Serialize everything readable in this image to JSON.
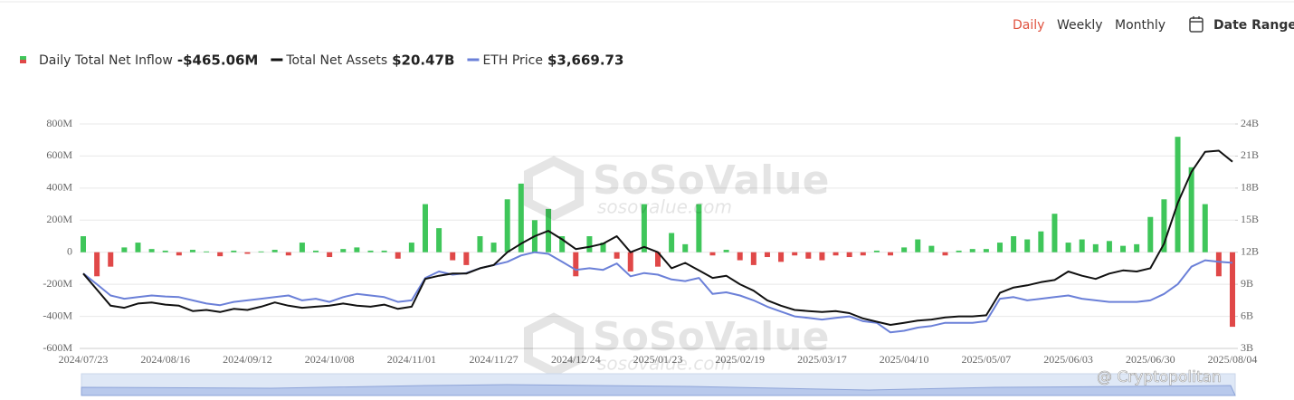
{
  "header": {
    "tabs": [
      "Daily",
      "Weekly",
      "Monthly"
    ],
    "date_range": "Date Range"
  },
  "watermark": [
    "SoSoValue",
    "sosovalue.com"
  ],
  "source": "@ Cryptopolitan",
  "chart_data": {
    "type": "bar-line",
    "categories": [
      "2024/07/23",
      null,
      null,
      null,
      null,
      null,
      "2024/08/16",
      null,
      null,
      null,
      null,
      null,
      "2024/09/12",
      null,
      null,
      null,
      null,
      null,
      "2024/10/08",
      null,
      null,
      null,
      null,
      null,
      "2024/11/01",
      null,
      null,
      null,
      null,
      null,
      "2024/11/27",
      null,
      null,
      null,
      null,
      null,
      "2024/12/24",
      null,
      null,
      null,
      null,
      null,
      "2025/01/23",
      null,
      null,
      null,
      null,
      null,
      "2025/02/19",
      null,
      null,
      null,
      null,
      null,
      "2025/03/17",
      null,
      null,
      null,
      null,
      null,
      "2025/04/10",
      null,
      null,
      null,
      null,
      null,
      "2025/05/07",
      null,
      null,
      null,
      null,
      null,
      "2025/06/03",
      null,
      null,
      null,
      null,
      null,
      "2025/06/30",
      null,
      null,
      null,
      null,
      null,
      "2025/08/04"
    ],
    "series": [
      {
        "name": "Daily Total Net Inflow",
        "latest": "-$465.06M",
        "color": "#3fc65a",
        "negative_color": "#e04848",
        "kind": "bar",
        "axis": "y",
        "values": [
          100,
          -150,
          -90,
          30,
          60,
          20,
          10,
          -20,
          15,
          5,
          -25,
          10,
          -10,
          5,
          15,
          -20,
          60,
          10,
          -30,
          20,
          30,
          10,
          10,
          -40,
          60,
          300,
          150,
          -50,
          -80,
          100,
          60,
          330,
          428,
          200,
          270,
          100,
          -150,
          100,
          60,
          -40,
          -120,
          300,
          -90,
          120,
          50,
          300,
          -20,
          15,
          -50,
          -80,
          -30,
          -60,
          -20,
          -40,
          -50,
          -20,
          -30,
          -20,
          10,
          -20,
          30,
          80,
          40,
          -20,
          10,
          20,
          20,
          60,
          100,
          80,
          130,
          240,
          60,
          80,
          50,
          70,
          40,
          50,
          220,
          330,
          720,
          530,
          300,
          -150,
          -465.06
        ]
      },
      {
        "name": "Total Net Assets",
        "latest": "$20.47B",
        "color": "#111111",
        "kind": "line",
        "axis": "y2",
        "values": [
          10.0,
          8.5,
          7.0,
          6.8,
          7.2,
          7.3,
          7.1,
          7.0,
          6.5,
          6.6,
          6.4,
          6.7,
          6.6,
          6.9,
          7.3,
          7.0,
          6.8,
          6.9,
          7.0,
          7.2,
          7.0,
          6.9,
          7.1,
          6.7,
          6.9,
          9.5,
          9.8,
          10.0,
          10.0,
          10.5,
          10.8,
          12.0,
          12.8,
          13.5,
          14.0,
          13.2,
          12.3,
          12.5,
          12.8,
          13.5,
          12.0,
          12.5,
          12.0,
          10.5,
          11.0,
          10.3,
          9.6,
          9.8,
          9.0,
          8.4,
          7.5,
          7.0,
          6.6,
          6.5,
          6.4,
          6.5,
          6.3,
          5.8,
          5.5,
          5.2,
          5.4,
          5.6,
          5.7,
          5.9,
          6.0,
          6.0,
          6.1,
          8.2,
          8.7,
          8.9,
          9.2,
          9.4,
          10.2,
          9.8,
          9.5,
          10.0,
          10.3,
          10.2,
          10.5,
          12.8,
          16.6,
          19.5,
          21.4,
          21.5,
          20.47
        ]
      },
      {
        "name": "ETH Price",
        "latest": "$3,669.73",
        "color": "#6b80d8",
        "kind": "line",
        "axis": "y3",
        "values": [
          3340,
          3000,
          2650,
          2550,
          2600,
          2650,
          2620,
          2600,
          2500,
          2400,
          2350,
          2450,
          2500,
          2550,
          2600,
          2650,
          2500,
          2550,
          2450,
          2600,
          2700,
          2650,
          2600,
          2450,
          2500,
          3200,
          3400,
          3300,
          3350,
          3500,
          3600,
          3700,
          3900,
          4000,
          3950,
          3700,
          3450,
          3500,
          3450,
          3650,
          3250,
          3350,
          3300,
          3150,
          3100,
          3200,
          2700,
          2750,
          2650,
          2500,
          2300,
          2150,
          2000,
          1950,
          1900,
          1950,
          2000,
          1850,
          1800,
          1500,
          1550,
          1650,
          1700,
          1800,
          1800,
          1800,
          1850,
          2550,
          2600,
          2500,
          2550,
          2600,
          2650,
          2550,
          2500,
          2450,
          2450,
          2450,
          2500,
          2700,
          3000,
          3550,
          3750,
          3700,
          3669.73
        ]
      }
    ],
    "ylim": [
      -600,
      800
    ],
    "yticks": [
      {
        "value": 800,
        "label": "800M"
      },
      {
        "value": 600,
        "label": "600M"
      },
      {
        "value": 400,
        "label": "400M"
      },
      {
        "value": 200,
        "label": "200M"
      },
      0,
      {
        "value": -200,
        "label": "-200M"
      },
      {
        "value": -400,
        "label": "-400M"
      },
      {
        "value": -600,
        "label": "-600M"
      }
    ],
    "y2lim": [
      3,
      24
    ],
    "y2ticks": [
      {
        "value": 24,
        "label": "24B"
      },
      {
        "value": 21,
        "label": "21B"
      },
      {
        "value": 18,
        "label": "18B"
      },
      {
        "value": 15,
        "label": "15B"
      },
      {
        "value": 12,
        "label": "12B"
      },
      {
        "value": 9,
        "label": "9B"
      },
      {
        "value": 6,
        "label": "6B"
      },
      {
        "value": 3,
        "label": "3B"
      }
    ],
    "y3lim": [
      1000,
      8000
    ],
    "grid": true
  }
}
